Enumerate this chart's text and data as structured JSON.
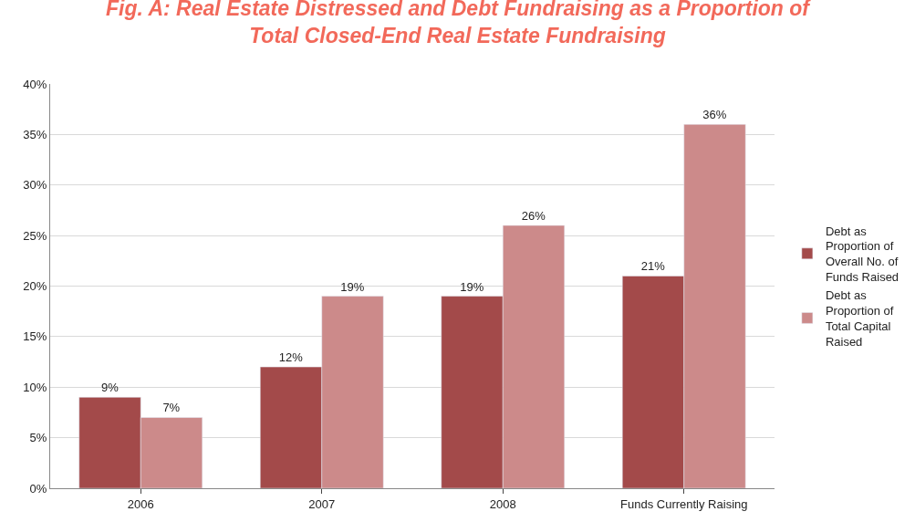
{
  "chart_data": {
    "type": "bar",
    "title": "Fig. A: Real Estate Distressed and Debt Fundraising as a Proportion of Total Closed-End Real Estate Fundraising",
    "categories": [
      "2006",
      "2007",
      "2008",
      "Funds Currently Raising"
    ],
    "series": [
      {
        "name": "Debt as Proportion of Overall No. of Funds Raised",
        "color": "#a34a4a",
        "values": [
          9,
          12,
          19,
          21
        ],
        "value_labels": [
          "9%",
          "12%",
          "19%",
          "21%"
        ]
      },
      {
        "name": "Debt as Proportion of Total Capital Raised",
        "color": "#cc8a8a",
        "values": [
          7,
          19,
          26,
          36
        ],
        "value_labels": [
          "7%",
          "19%",
          "26%",
          "36%"
        ]
      }
    ],
    "ylim": [
      0,
      40
    ],
    "yticks": [
      {
        "value": 0,
        "label": "0%"
      },
      {
        "value": 5,
        "label": "5%"
      },
      {
        "value": 10,
        "label": "10%"
      },
      {
        "value": 15,
        "label": "15%"
      },
      {
        "value": 20,
        "label": "20%"
      },
      {
        "value": 25,
        "label": "25%"
      },
      {
        "value": 30,
        "label": "30%"
      },
      {
        "value": 35,
        "label": "35%"
      },
      {
        "value": 40,
        "label": "40%"
      }
    ],
    "grid": "y",
    "legend": "right"
  }
}
